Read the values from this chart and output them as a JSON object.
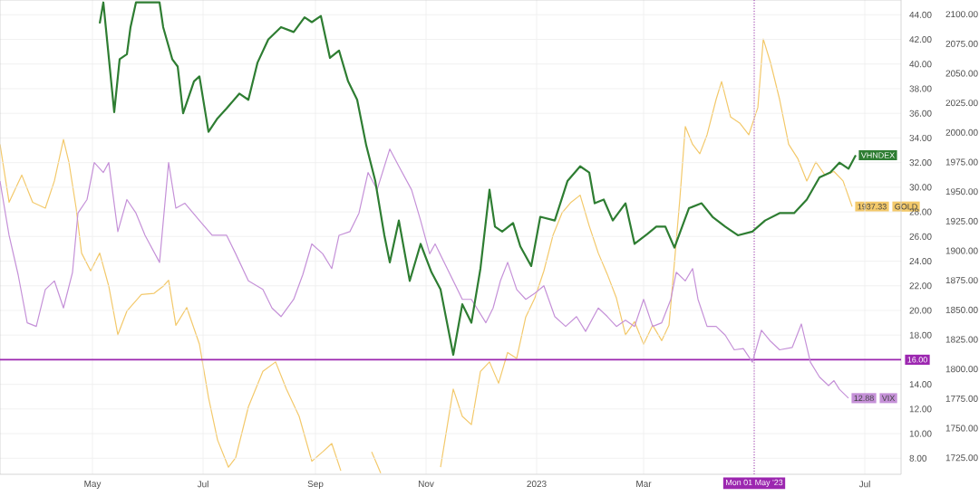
{
  "chart_data": {
    "type": "line",
    "xlim": [
      "2022-03-11",
      "2023-07-21"
    ],
    "xticks": [
      {
        "value": "2022-05-01",
        "label": "May"
      },
      {
        "value": "2022-07-01",
        "label": "Jul"
      },
      {
        "value": "2022-09-01",
        "label": "Sep"
      },
      {
        "value": "2022-11-01",
        "label": "Nov"
      },
      {
        "value": "2023-01-01",
        "label": "2023"
      },
      {
        "value": "2023-03-01",
        "label": "Mar"
      },
      {
        "value": "2023-05-01",
        "label": null
      },
      {
        "value": "2023-07-01",
        "label": "Jul"
      }
    ],
    "ylim": [
      6.7,
      45.2
    ],
    "yticks": [
      {
        "value": 8,
        "label": "8.00"
      },
      {
        "value": 10,
        "label": "10.00"
      },
      {
        "value": 12,
        "label": "12.00"
      },
      {
        "value": 14,
        "label": "14.00"
      },
      {
        "value": 16,
        "label": null
      },
      {
        "value": 18,
        "label": "18.00"
      },
      {
        "value": 20,
        "label": "20.00"
      },
      {
        "value": 22,
        "label": "22.00"
      },
      {
        "value": 24,
        "label": "24.00"
      },
      {
        "value": 26,
        "label": "26.00"
      },
      {
        "value": 28,
        "label": "28.00"
      },
      {
        "value": 30,
        "label": "30.00"
      },
      {
        "value": 32,
        "label": "32.00"
      },
      {
        "value": 34,
        "label": "34.00"
      },
      {
        "value": 36,
        "label": "36.00"
      },
      {
        "value": 38,
        "label": "38.00"
      },
      {
        "value": 40,
        "label": "40.00"
      },
      {
        "value": 42,
        "label": "42.00"
      },
      {
        "value": 44,
        "label": "44.00"
      }
    ],
    "y2lim": [
      1711,
      2112
    ],
    "y2ticks": [
      {
        "value": 1725,
        "label": "1725.00"
      },
      {
        "value": 1750,
        "label": "1750.00"
      },
      {
        "value": 1775,
        "label": "1775.00"
      },
      {
        "value": 1800,
        "label": "1800.00"
      },
      {
        "value": 1825,
        "label": "1825.00"
      },
      {
        "value": 1850,
        "label": "1850.00"
      },
      {
        "value": 1875,
        "label": "1875.00"
      },
      {
        "value": 1900,
        "label": "1900.00"
      },
      {
        "value": 1925,
        "label": "1925.00"
      },
      {
        "value": 1950,
        "label": "1950.00"
      },
      {
        "value": 1975,
        "label": "1975.00"
      },
      {
        "value": 2000,
        "label": "2000.00"
      },
      {
        "value": 2025,
        "label": "2025.00"
      },
      {
        "value": 2050,
        "label": "2050.00"
      },
      {
        "value": 2075,
        "label": "2075.00"
      },
      {
        "value": 2100,
        "label": "2100.00"
      }
    ],
    "grid": true,
    "legend": "right",
    "ref_lines": [
      {
        "axis": "y",
        "value": 16,
        "label": "16.00",
        "color": "#9c27b0",
        "line_style": "solid"
      },
      {
        "axis": "x",
        "value": "2023-05-01",
        "label": "Mon 01 May '23",
        "color": "#9c27b0",
        "line_style": "dotted"
      }
    ],
    "series": [
      {
        "name": "GOLD",
        "color": "#f3c96b",
        "axis": "y2",
        "x": [
          "2022-03-11",
          "2022-03-16",
          "2022-03-23",
          "2022-03-29",
          "2022-04-05",
          "2022-04-10",
          "2022-04-15",
          "2022-04-18",
          "2022-04-22",
          "2022-04-25",
          "2022-04-30",
          "2022-05-05",
          "2022-05-10",
          "2022-05-15",
          "2022-05-20",
          "2022-05-28",
          "2022-06-04",
          "2022-06-09",
          "2022-06-12",
          "2022-06-16",
          "2022-06-22",
          "2022-06-29",
          "2022-07-04",
          "2022-07-09",
          "2022-07-15",
          "2022-07-19",
          "2022-07-26",
          "2022-08-03",
          "2022-08-10",
          "2022-08-16",
          "2022-08-23",
          "2022-08-30",
          "2022-09-05",
          "2022-09-10",
          "2022-09-15",
          "2022-09-22",
          "2022-10-02",
          "2022-10-07",
          "2022-10-22",
          "2022-11-09",
          "2022-11-16",
          "2022-11-21",
          "2022-11-26",
          "2022-12-01",
          "2022-12-06",
          "2022-12-11",
          "2022-12-16",
          "2022-12-21",
          "2022-12-26",
          "2022-12-31",
          "2023-01-05",
          "2023-01-10",
          "2023-01-15",
          "2023-01-20",
          "2023-01-25",
          "2023-01-30",
          "2023-02-04",
          "2023-02-09",
          "2023-02-14",
          "2023-02-19",
          "2023-02-24",
          "2023-03-01",
          "2023-03-06",
          "2023-03-11",
          "2023-03-15",
          "2023-03-18",
          "2023-03-21",
          "2023-03-24",
          "2023-03-28",
          "2023-04-01",
          "2023-04-05",
          "2023-04-10",
          "2023-04-13",
          "2023-04-18",
          "2023-04-23",
          "2023-04-28",
          "2023-05-03",
          "2023-05-06",
          "2023-05-10",
          "2023-05-15",
          "2023-05-20",
          "2023-05-25",
          "2023-05-30",
          "2023-06-04",
          "2023-06-09",
          "2023-06-14",
          "2023-06-19",
          "2023-06-24"
        ],
        "values": [
          1990,
          1941,
          1964,
          1941,
          1936,
          1959,
          1994,
          1975,
          1936,
          1898,
          1883,
          1898,
          1870,
          1829,
          1849,
          1863,
          1864,
          1870,
          1875,
          1837,
          1852,
          1821,
          1776,
          1740,
          1717,
          1725,
          1768,
          1798,
          1806,
          1783,
          1760,
          1722,
          1730,
          1737,
          1714,
          null,
          1730,
          1712,
          null,
          1717,
          1783,
          1760,
          1753,
          1798,
          1806,
          1788,
          1814,
          1809,
          1844,
          1860,
          1883,
          1913,
          1932,
          1941,
          1947,
          1921,
          1898,
          1880,
          1860,
          1829,
          1840,
          1821,
          1837,
          1824,
          1837,
          1890,
          1944,
          2005,
          1990,
          1982,
          1998,
          2028,
          2043,
          2013,
          2008,
          1998,
          2021,
          2079,
          2059,
          2028,
          1990,
          1978,
          1959,
          1975,
          1964,
          1967,
          1959,
          1937.33
        ],
        "value_labels": [
          null,
          null,
          null,
          null,
          null,
          null,
          null,
          null,
          null,
          null,
          null,
          null,
          null,
          null,
          null,
          null,
          null,
          null,
          null,
          null,
          null,
          null,
          null,
          null,
          null,
          null,
          null,
          null,
          null,
          null,
          null,
          null,
          null,
          null,
          null,
          null,
          null,
          null,
          null,
          null,
          null,
          null,
          null,
          null,
          null,
          null,
          null,
          null,
          null,
          null,
          null,
          null,
          null,
          null,
          null,
          null,
          null,
          null,
          null,
          null,
          null,
          null,
          null,
          null,
          null,
          null,
          null,
          null,
          null,
          null,
          null,
          null,
          null,
          null,
          null,
          null,
          null,
          null,
          null,
          null,
          null,
          null,
          null,
          null,
          null,
          null,
          null,
          "1937.33"
        ]
      },
      {
        "name": "VIX",
        "color": "#c591d8",
        "x": [
          "2022-03-11",
          "2022-03-16",
          "2022-03-21",
          "2022-03-26",
          "2022-03-31",
          "2022-04-05",
          "2022-04-10",
          "2022-04-15",
          "2022-04-20",
          "2022-04-23",
          "2022-04-28",
          "2022-05-02",
          "2022-05-07",
          "2022-05-10",
          "2022-05-15",
          "2022-05-20",
          "2022-05-25",
          "2022-05-30",
          "2022-06-07",
          "2022-06-12",
          "2022-06-16",
          "2022-06-21",
          "2022-06-29",
          "2022-07-06",
          "2022-07-14",
          "2022-07-19",
          "2022-07-26",
          "2022-08-03",
          "2022-08-08",
          "2022-08-13",
          "2022-08-20",
          "2022-08-25",
          "2022-08-30",
          "2022-09-05",
          "2022-09-10",
          "2022-09-14",
          "2022-09-20",
          "2022-09-25",
          "2022-09-30",
          "2022-10-05",
          "2022-10-12",
          "2022-10-17",
          "2022-10-24",
          "2022-10-29",
          "2022-11-03",
          "2022-11-06",
          "2022-11-11",
          "2022-11-16",
          "2022-11-21",
          "2022-11-26",
          "2022-12-04",
          "2022-12-08",
          "2022-12-12",
          "2022-12-16",
          "2022-12-21",
          "2022-12-26",
          "2022-12-31",
          "2023-01-05",
          "2023-01-11",
          "2023-01-17",
          "2023-01-23",
          "2023-01-28",
          "2023-02-04",
          "2023-02-09",
          "2023-02-14",
          "2023-02-19",
          "2023-02-24",
          "2023-03-01",
          "2023-03-06",
          "2023-03-11",
          "2023-03-16",
          "2023-03-19",
          "2023-03-24",
          "2023-03-28",
          "2023-03-31",
          "2023-04-05",
          "2023-04-10",
          "2023-04-15",
          "2023-04-20",
          "2023-04-25",
          "2023-04-30",
          "2023-05-05",
          "2023-05-10",
          "2023-05-15",
          "2023-05-22",
          "2023-05-27",
          "2023-06-01",
          "2023-06-06",
          "2023-06-11",
          "2023-06-14",
          "2023-06-17",
          "2023-06-22"
        ],
        "values": [
          30.5,
          26.1,
          22.9,
          19.0,
          18.7,
          21.7,
          22.4,
          20.2,
          23.1,
          27.9,
          29.0,
          32.0,
          31.2,
          32.0,
          26.4,
          29.0,
          27.9,
          26.1,
          23.9,
          32.0,
          28.3,
          28.7,
          27.3,
          26.1,
          26.1,
          24.6,
          22.4,
          21.7,
          20.2,
          19.5,
          20.9,
          22.9,
          25.4,
          24.6,
          23.4,
          26.1,
          26.4,
          27.9,
          31.2,
          29.8,
          33.1,
          31.7,
          29.8,
          27.3,
          24.6,
          25.4,
          23.9,
          22.4,
          20.9,
          20.9,
          19.0,
          20.2,
          22.4,
          23.9,
          21.7,
          20.9,
          21.4,
          22.0,
          19.5,
          18.7,
          19.5,
          18.3,
          20.2,
          19.5,
          18.7,
          19.2,
          18.7,
          20.9,
          18.7,
          19.0,
          20.9,
          23.1,
          22.4,
          23.4,
          20.9,
          18.7,
          18.7,
          18.0,
          16.8,
          16.9,
          15.8,
          18.4,
          17.5,
          16.8,
          17.0,
          18.9,
          15.8,
          14.6,
          13.9,
          14.3,
          13.6,
          12.88
        ],
        "value_labels": [
          null,
          null,
          null,
          null,
          null,
          null,
          null,
          null,
          null,
          null,
          null,
          null,
          null,
          null,
          null,
          null,
          null,
          null,
          null,
          null,
          null,
          null,
          null,
          null,
          null,
          null,
          null,
          null,
          null,
          null,
          null,
          null,
          null,
          null,
          null,
          null,
          null,
          null,
          null,
          null,
          null,
          null,
          null,
          null,
          null,
          null,
          null,
          null,
          null,
          null,
          null,
          null,
          null,
          null,
          null,
          null,
          null,
          null,
          null,
          null,
          null,
          null,
          null,
          null,
          null,
          null,
          null,
          null,
          null,
          null,
          null,
          null,
          null,
          null,
          null,
          null,
          null,
          null,
          null,
          null,
          null,
          null,
          null,
          null,
          null,
          null,
          null,
          null,
          null,
          null,
          null,
          "12.88"
        ]
      },
      {
        "name": "VHNDEX",
        "color": "#2e7d32",
        "x": [
          "2022-05-05",
          "2022-05-07",
          "2022-05-13",
          "2022-05-16",
          "2022-05-20",
          "2022-05-22",
          "2022-05-25",
          "2022-06-07",
          "2022-06-09",
          "2022-06-14",
          "2022-06-17",
          "2022-06-20",
          "2022-06-26",
          "2022-06-29",
          "2022-07-04",
          "2022-07-09",
          "2022-07-14",
          "2022-07-21",
          "2022-07-26",
          "2022-07-31",
          "2022-08-06",
          "2022-08-13",
          "2022-08-20",
          "2022-08-26",
          "2022-08-30",
          "2022-09-04",
          "2022-09-09",
          "2022-09-14",
          "2022-09-19",
          "2022-09-24",
          "2022-09-29",
          "2022-10-04",
          "2022-10-09",
          "2022-10-12",
          "2022-10-17",
          "2022-10-23",
          "2022-10-29",
          "2022-11-04",
          "2022-11-09",
          "2022-11-16",
          "2022-11-21",
          "2022-11-26",
          "2022-12-01",
          "2022-12-06",
          "2022-12-09",
          "2022-12-13",
          "2022-12-19",
          "2022-12-23",
          "2022-12-29",
          "2023-01-03",
          "2023-01-11",
          "2023-01-18",
          "2023-01-25",
          "2023-01-30",
          "2023-02-02",
          "2023-02-07",
          "2023-02-12",
          "2023-02-19",
          "2023-02-24",
          "2023-03-03",
          "2023-03-08",
          "2023-03-13",
          "2023-03-18",
          "2023-03-26",
          "2023-04-02",
          "2023-04-08",
          "2023-04-15",
          "2023-04-22",
          "2023-04-30",
          "2023-05-07",
          "2023-05-15",
          "2023-05-23",
          "2023-05-30",
          "2023-06-06",
          "2023-06-12",
          "2023-06-17",
          "2023-06-22",
          "2023-06-26"
        ],
        "values": [
          43.3,
          45.0,
          36.1,
          40.4,
          40.8,
          43.0,
          45.0,
          45.0,
          43.0,
          40.4,
          39.8,
          36.0,
          38.6,
          39.0,
          34.5,
          35.6,
          36.4,
          37.6,
          37.1,
          40.1,
          42.0,
          43.0,
          42.6,
          43.8,
          43.4,
          43.9,
          40.5,
          41.1,
          38.6,
          37.1,
          33.4,
          30.5,
          26.1,
          23.9,
          27.3,
          22.4,
          25.4,
          23.1,
          21.7,
          16.4,
          20.5,
          19.0,
          23.4,
          29.8,
          26.8,
          26.4,
          27.1,
          25.2,
          23.6,
          27.6,
          27.3,
          30.5,
          31.7,
          31.2,
          28.7,
          29.0,
          27.3,
          28.7,
          25.4,
          26.2,
          26.8,
          26.8,
          25.1,
          28.3,
          28.7,
          27.6,
          26.8,
          26.1,
          26.4,
          27.3,
          27.9,
          27.9,
          29.0,
          30.8,
          31.2,
          32.0,
          31.5,
          32.6
        ]
      }
    ]
  }
}
